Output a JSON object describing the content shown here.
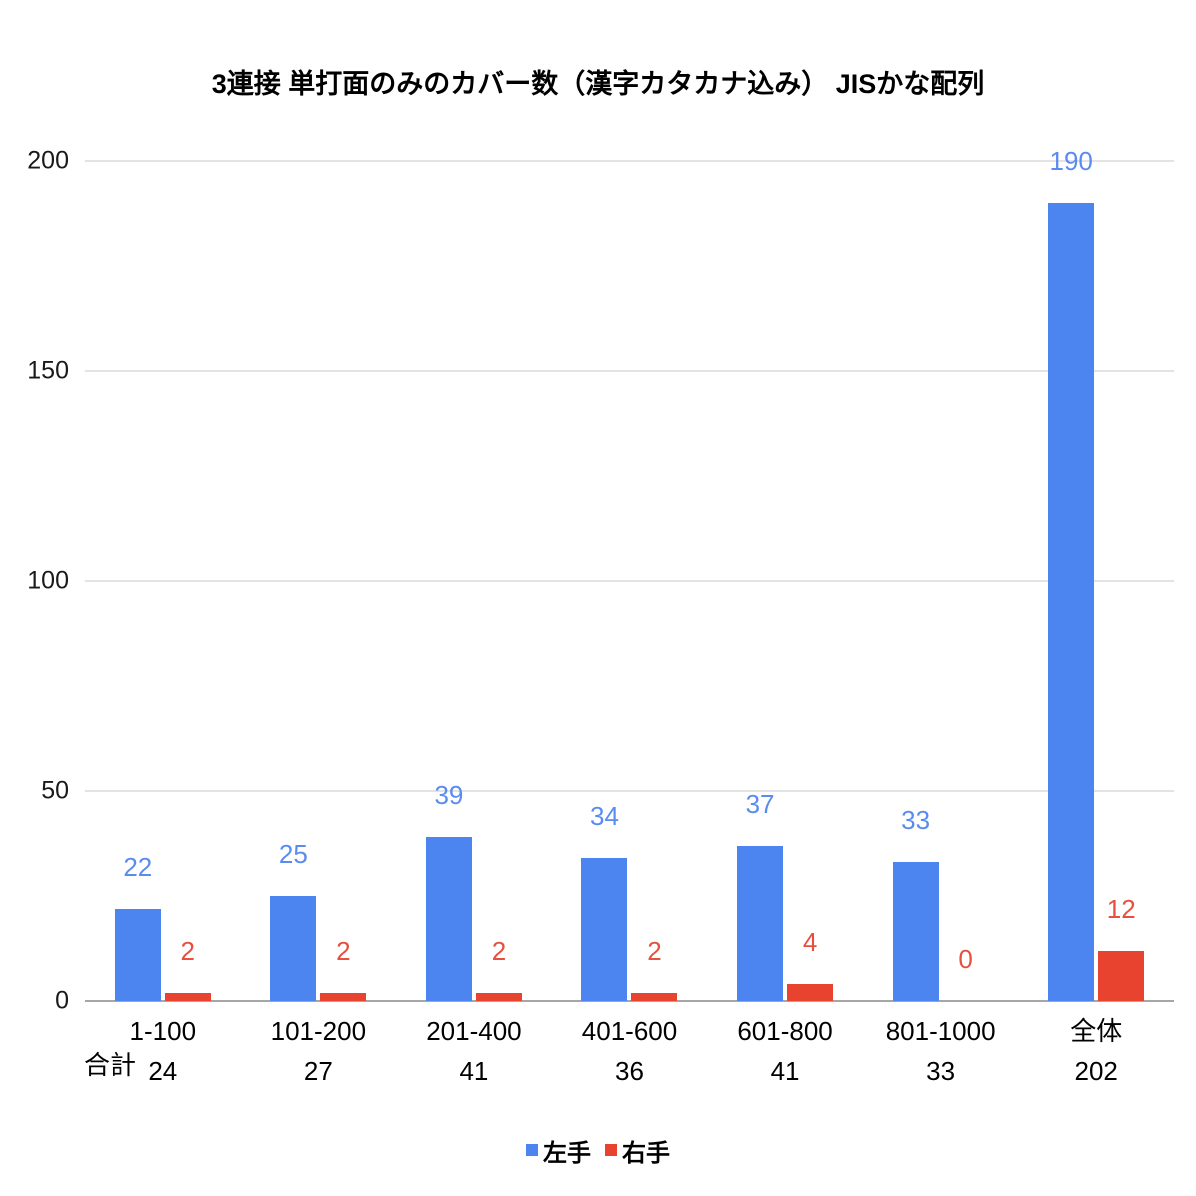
{
  "chart_data": {
    "type": "bar",
    "title": "3連接 単打面のみのカバー数（漢字カタカナ込み） JISかな配列",
    "categories": [
      "1-100",
      "101-200",
      "201-400",
      "401-600",
      "601-800",
      "801-1000",
      "全体"
    ],
    "series": [
      {
        "name": "左手",
        "bar_color": "#4c84f0",
        "label_color": "#5a8cf0",
        "values": [
          22,
          25,
          39,
          34,
          37,
          33,
          190
        ]
      },
      {
        "name": "右手",
        "bar_color": "#e8432e",
        "label_color": "#e6503e",
        "values": [
          2,
          2,
          2,
          2,
          4,
          0,
          12
        ]
      }
    ],
    "totals_row": {
      "label": "合計",
      "values": [
        24,
        27,
        41,
        36,
        41,
        33,
        202
      ]
    },
    "y_axis": {
      "ticks": [
        0,
        50,
        100,
        150,
        200
      ],
      "max": 200
    },
    "grid": true,
    "legend_position": "bottom",
    "colors": {
      "gridline": "#e3e3e3",
      "axis_line": "#a6a6a6",
      "text": "#000000"
    }
  }
}
